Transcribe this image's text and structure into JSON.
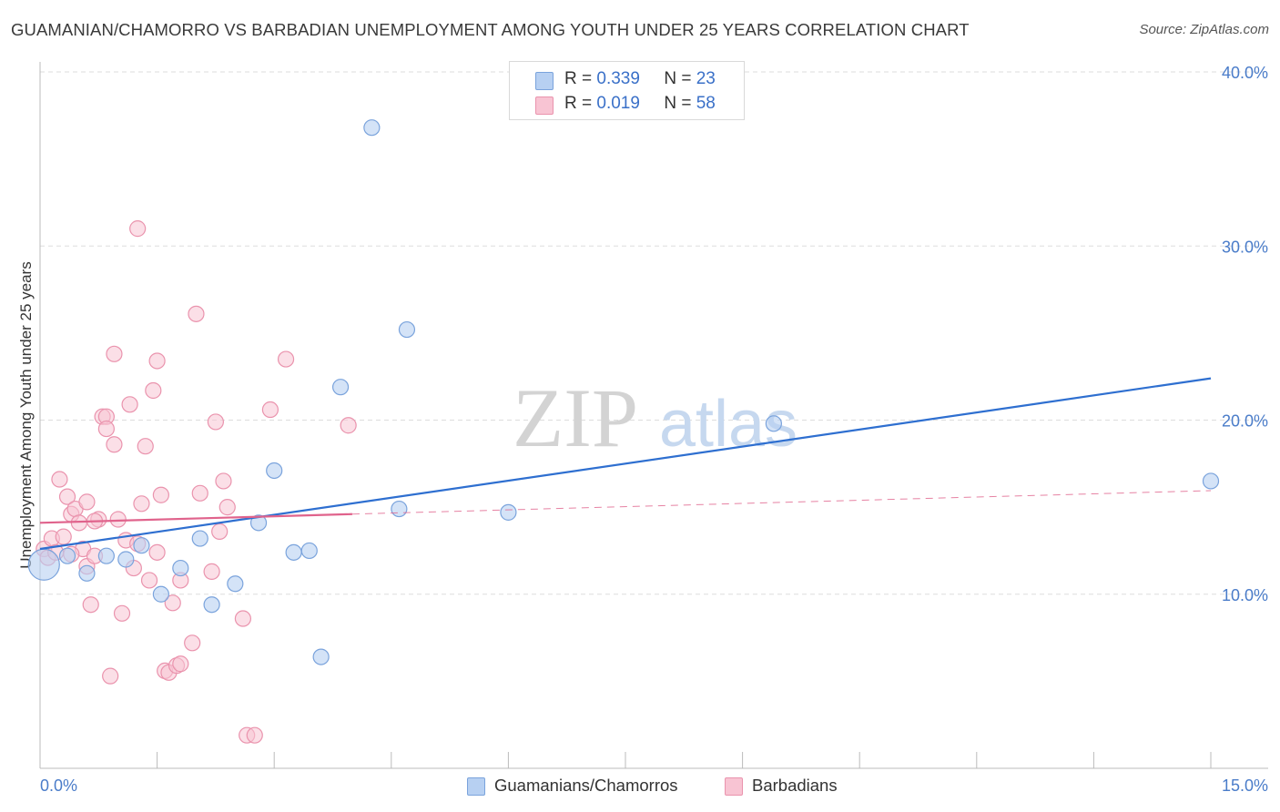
{
  "title": "GUAMANIAN/CHAMORRO VS BARBADIAN UNEMPLOYMENT AMONG YOUTH UNDER 25 YEARS CORRELATION CHART",
  "source": "Source: ZipAtlas.com",
  "watermark": {
    "zip": "ZIP",
    "atlas": "atlas"
  },
  "legend": {
    "r_label": "R =",
    "n_label": "N =",
    "series": [
      {
        "r": "0.339",
        "n": "23"
      },
      {
        "r": "0.019",
        "n": "58"
      }
    ]
  },
  "bottom_legend": [
    "Guamanians/Chamorros",
    "Barbadians"
  ],
  "colors": {
    "blue_fill": "#b7d0f2",
    "blue_stroke": "#7aa3dc",
    "blue_line": "#2e6fd0",
    "pink_fill": "#f8c4d3",
    "pink_stroke": "#ea93ad",
    "pink_line": "#e0638c",
    "grid": "#dddddd",
    "axis_text": "#4a7cc9"
  },
  "chart_data": {
    "type": "scatter",
    "title": "GUAMANIAN/CHAMORRO VS BARBADIAN UNEMPLOYMENT AMONG YOUTH UNDER 25 YEARS CORRELATION CHART",
    "xlabel": "",
    "ylabel": "Unemployment Among Youth under 25 years",
    "xlim": [
      0,
      15
    ],
    "ylim": [
      0,
      40
    ],
    "x_tick_labels": [
      "0.0%",
      "15.0%"
    ],
    "y_ticks": [
      10,
      20,
      30,
      40
    ],
    "y_tick_labels": [
      "10.0%",
      "20.0%",
      "30.0%",
      "40.0%"
    ],
    "series": [
      {
        "name": "Guamanians/Chamorros",
        "R": 0.339,
        "N": 23,
        "points": [
          [
            0.05,
            11.7
          ],
          [
            0.35,
            12.2
          ],
          [
            0.6,
            11.2
          ],
          [
            0.85,
            12.2
          ],
          [
            1.1,
            12.0
          ],
          [
            1.3,
            12.8
          ],
          [
            1.55,
            10.0
          ],
          [
            1.8,
            11.5
          ],
          [
            2.05,
            13.2
          ],
          [
            2.2,
            9.4
          ],
          [
            2.5,
            10.6
          ],
          [
            2.8,
            14.1
          ],
          [
            3.0,
            17.1
          ],
          [
            3.25,
            12.4
          ],
          [
            3.45,
            12.5
          ],
          [
            3.6,
            6.4
          ],
          [
            3.85,
            21.9
          ],
          [
            4.25,
            36.8
          ],
          [
            4.6,
            14.9
          ],
          [
            4.7,
            25.2
          ],
          [
            6.0,
            14.7
          ],
          [
            9.4,
            19.8
          ],
          [
            15.0,
            16.5
          ]
        ],
        "trend": {
          "x": [
            0,
            15
          ],
          "y": [
            12.6,
            22.4
          ],
          "style": "solid"
        }
      },
      {
        "name": "Barbadians",
        "R": 0.019,
        "N": 58,
        "points": [
          [
            0.05,
            12.6
          ],
          [
            0.1,
            12.1
          ],
          [
            0.15,
            13.2
          ],
          [
            0.2,
            12.4
          ],
          [
            0.25,
            16.6
          ],
          [
            0.3,
            13.3
          ],
          [
            0.35,
            15.6
          ],
          [
            0.4,
            14.6
          ],
          [
            0.45,
            14.9
          ],
          [
            0.5,
            14.1
          ],
          [
            0.55,
            12.6
          ],
          [
            0.6,
            11.6
          ],
          [
            0.6,
            15.3
          ],
          [
            0.65,
            9.4
          ],
          [
            0.7,
            12.2
          ],
          [
            0.75,
            14.3
          ],
          [
            0.8,
            20.2
          ],
          [
            0.85,
            20.2
          ],
          [
            0.85,
            19.5
          ],
          [
            0.9,
            5.3
          ],
          [
            0.95,
            18.6
          ],
          [
            0.95,
            23.8
          ],
          [
            1.0,
            14.3
          ],
          [
            1.05,
            8.9
          ],
          [
            1.1,
            13.1
          ],
          [
            1.15,
            20.9
          ],
          [
            1.2,
            11.5
          ],
          [
            1.25,
            31.0
          ],
          [
            1.3,
            15.2
          ],
          [
            1.35,
            18.5
          ],
          [
            1.4,
            10.8
          ],
          [
            1.45,
            21.7
          ],
          [
            1.5,
            23.4
          ],
          [
            1.5,
            12.4
          ],
          [
            1.55,
            15.7
          ],
          [
            1.6,
            5.6
          ],
          [
            1.65,
            5.5
          ],
          [
            1.7,
            9.5
          ],
          [
            1.75,
            5.9
          ],
          [
            1.8,
            6.0
          ],
          [
            1.8,
            10.8
          ],
          [
            1.95,
            7.2
          ],
          [
            2.0,
            26.1
          ],
          [
            2.05,
            15.8
          ],
          [
            2.2,
            11.3
          ],
          [
            2.25,
            19.9
          ],
          [
            2.3,
            13.6
          ],
          [
            2.35,
            16.5
          ],
          [
            2.4,
            15.0
          ],
          [
            2.6,
            8.6
          ],
          [
            2.65,
            1.9
          ],
          [
            2.75,
            1.9
          ],
          [
            2.95,
            20.6
          ],
          [
            3.15,
            23.5
          ],
          [
            3.95,
            19.7
          ],
          [
            0.4,
            12.3
          ],
          [
            1.25,
            12.9
          ],
          [
            0.7,
            14.2
          ]
        ],
        "trend": {
          "x": [
            0,
            4.0
          ],
          "y": [
            14.1,
            14.6
          ],
          "style": "solid"
        },
        "trend_extension": {
          "x": [
            4.0,
            15
          ],
          "y": [
            14.6,
            15.95
          ],
          "style": "dashed"
        }
      }
    ]
  }
}
